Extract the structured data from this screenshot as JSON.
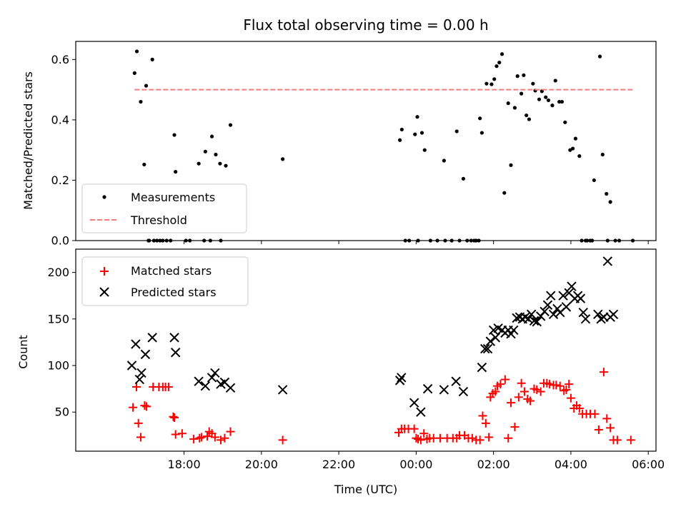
{
  "figure": {
    "title": "Flux total observing time = 0.00 h"
  },
  "chart_data": [
    {
      "type": "scatter",
      "xlabel": "",
      "ylabel": "Matched/Predicted stars",
      "x_unit": "hours since 16:00 UTC on first night",
      "xlim": [
        15.2,
        30.2
      ],
      "ylim": [
        0,
        0.66
      ],
      "yticks": [
        0,
        0.2,
        0.4,
        0.6
      ],
      "ytick_labels": [
        "0.0",
        "0.2",
        "0.4",
        "0.6"
      ],
      "legend_position": "lower-left",
      "series": [
        {
          "name": "Measurements",
          "marker": "dot",
          "color": "#000000",
          "x": [
            16.72,
            16.78,
            16.88,
            16.97,
            17.02,
            17.08,
            17.18,
            17.22,
            17.75,
            17.78,
            18.15,
            18.38,
            18.55,
            18.72,
            18.82,
            18.93,
            19.08,
            19.2,
            20.55,
            23.58,
            23.63,
            23.97,
            24.03,
            24.15,
            24.22,
            24.37,
            24.72,
            25.05,
            25.22,
            25.5,
            25.65,
            25.7,
            25.82,
            25.95,
            26.02,
            26.08,
            26.15,
            26.22,
            26.28,
            26.38,
            26.45,
            26.55,
            26.62,
            26.72,
            26.78,
            26.85,
            26.92,
            27.02,
            27.08,
            27.18,
            27.25,
            27.35,
            27.42,
            27.52,
            27.6,
            27.7,
            27.77,
            27.85,
            27.98,
            28.05,
            28.12,
            28.22,
            28.28,
            28.38,
            28.6,
            28.75,
            28.82,
            28.92,
            29.02
          ],
          "y": [
            0.555,
            0.627,
            0.46,
            0.252,
            0.513,
            0.0,
            0.6,
            0.0,
            0.35,
            0.228,
            0.0,
            0.255,
            0.295,
            0.345,
            0.285,
            0.255,
            0.248,
            0.383,
            0.27,
            0.333,
            0.368,
            0.352,
            0.41,
            0.357,
            0.3,
            0.0,
            0.265,
            0.362,
            0.205,
            0.0,
            0.405,
            0.357,
            0.52,
            0.518,
            0.535,
            0.578,
            0.59,
            0.618,
            0.158,
            0.455,
            0.25,
            0.44,
            0.545,
            0.487,
            0.548,
            0.415,
            0.402,
            0.52,
            0.497,
            0.468,
            0.495,
            0.475,
            0.465,
            0.448,
            0.53,
            0.46,
            0.46,
            0.392,
            0.3,
            0.305,
            0.338,
            0.28,
            0.0,
            0.0,
            0.2,
            0.61,
            0.285,
            0.155,
            0.128
          ]
        },
        {
          "name": "Threshold",
          "style": "dashed",
          "color": "#f08080",
          "x": [
            16.72,
            29.62
          ],
          "y": [
            0.5,
            0.5
          ]
        }
      ],
      "zero_points_x": [
        17.1,
        17.3,
        17.38,
        17.45,
        17.55,
        17.65,
        18.05,
        18.52,
        18.68,
        18.95,
        23.72,
        23.82,
        24.05,
        24.55,
        24.75,
        24.92,
        25.12,
        25.32,
        25.42,
        25.55,
        25.62,
        28.42,
        28.5,
        28.55,
        28.95,
        29.15,
        29.25,
        29.6
      ]
    },
    {
      "type": "scatter",
      "xlabel": "Time (UTC)",
      "ylabel": "Count",
      "x_unit": "hours since 16:00 UTC on first night",
      "xlim": [
        15.2,
        30.2
      ],
      "ylim": [
        8,
        225
      ],
      "yticks": [
        50,
        100,
        150,
        200
      ],
      "ytick_labels": [
        "50",
        "100",
        "150",
        "200"
      ],
      "xticks": [
        18,
        20,
        22,
        24,
        26,
        28,
        30
      ],
      "xtick_labels": [
        "18:00",
        "20:00",
        "22:00",
        "00:00",
        "02:00",
        "04:00",
        "06:00"
      ],
      "legend_position": "upper-left",
      "series": [
        {
          "name": "Matched stars",
          "marker": "plus",
          "color": "#ff0000",
          "x": [
            16.68,
            16.77,
            16.82,
            16.88,
            16.98,
            17.03,
            17.2,
            17.35,
            17.45,
            17.52,
            17.6,
            17.72,
            17.75,
            17.78,
            17.95,
            18.25,
            18.4,
            18.45,
            18.6,
            18.65,
            18.72,
            18.8,
            18.95,
            19.05,
            19.2,
            20.55,
            23.55,
            23.62,
            23.7,
            23.8,
            23.95,
            24.0,
            24.05,
            24.12,
            24.2,
            24.28,
            24.35,
            24.45,
            24.62,
            24.8,
            24.95,
            25.05,
            25.12,
            25.25,
            25.35,
            25.45,
            25.55,
            25.65,
            25.72,
            25.8,
            25.88,
            25.92,
            25.98,
            26.05,
            26.1,
            26.18,
            26.3,
            26.38,
            26.45,
            26.55,
            26.65,
            26.72,
            26.8,
            26.88,
            26.95,
            27.05,
            27.12,
            27.22,
            27.3,
            27.38,
            27.45,
            27.55,
            27.62,
            27.72,
            27.82,
            27.88,
            27.95,
            28.0,
            28.08,
            28.15,
            28.22,
            28.3,
            28.4,
            28.5,
            28.62,
            28.72,
            28.85,
            28.93,
            29.02,
            29.1,
            29.2,
            29.55
          ],
          "y": [
            55,
            77,
            38,
            23,
            57,
            56,
            77,
            77,
            77,
            77,
            77,
            45,
            44,
            26,
            27,
            21,
            22,
            23,
            24,
            29,
            27,
            23,
            20,
            22,
            29,
            20,
            28,
            32,
            32,
            32,
            32,
            22,
            21,
            20,
            27,
            21,
            22,
            22,
            22,
            22,
            22,
            22,
            25,
            25,
            22,
            22,
            20,
            20,
            46,
            38,
            23,
            66,
            70,
            72,
            78,
            80,
            85,
            22,
            60,
            34,
            66,
            81,
            72,
            64,
            62,
            75,
            74,
            72,
            81,
            81,
            80,
            79,
            79,
            78,
            73,
            74,
            80,
            65,
            54,
            57,
            54,
            48,
            48,
            48,
            48,
            31,
            93,
            43,
            33,
            20,
            20,
            20
          ]
        },
        {
          "name": "Predicted stars",
          "marker": "cross",
          "color": "#000000",
          "x": [
            16.65,
            16.75,
            16.85,
            16.9,
            17.0,
            17.18,
            17.75,
            17.78,
            18.38,
            18.55,
            18.72,
            18.8,
            18.95,
            19.05,
            19.2,
            20.55,
            23.58,
            23.62,
            23.95,
            24.12,
            24.3,
            24.72,
            25.03,
            25.22,
            25.7,
            25.78,
            25.85,
            25.92,
            26.0,
            26.05,
            26.12,
            26.22,
            26.3,
            26.38,
            26.45,
            26.52,
            26.6,
            26.68,
            26.75,
            26.82,
            26.9,
            26.98,
            27.05,
            27.12,
            27.22,
            27.32,
            27.4,
            27.48,
            27.55,
            27.65,
            27.72,
            27.8,
            27.88,
            27.95,
            28.02,
            28.1,
            28.18,
            28.25,
            28.32,
            28.38,
            28.7,
            28.78,
            28.85,
            28.95,
            29.02,
            29.1
          ],
          "y": [
            100,
            123,
            85,
            92,
            112,
            130,
            130,
            114,
            83,
            78,
            87,
            92,
            80,
            82,
            76,
            74,
            84,
            87,
            60,
            50,
            75,
            74,
            83,
            72,
            98,
            118,
            118,
            126,
            138,
            130,
            140,
            138,
            135,
            138,
            134,
            138,
            151,
            152,
            150,
            152,
            150,
            155,
            148,
            147,
            153,
            158,
            165,
            175,
            155,
            161,
            157,
            175,
            163,
            178,
            185,
            172,
            175,
            172,
            157,
            150,
            155,
            150,
            152,
            212,
            152,
            155
          ]
        }
      ]
    }
  ]
}
